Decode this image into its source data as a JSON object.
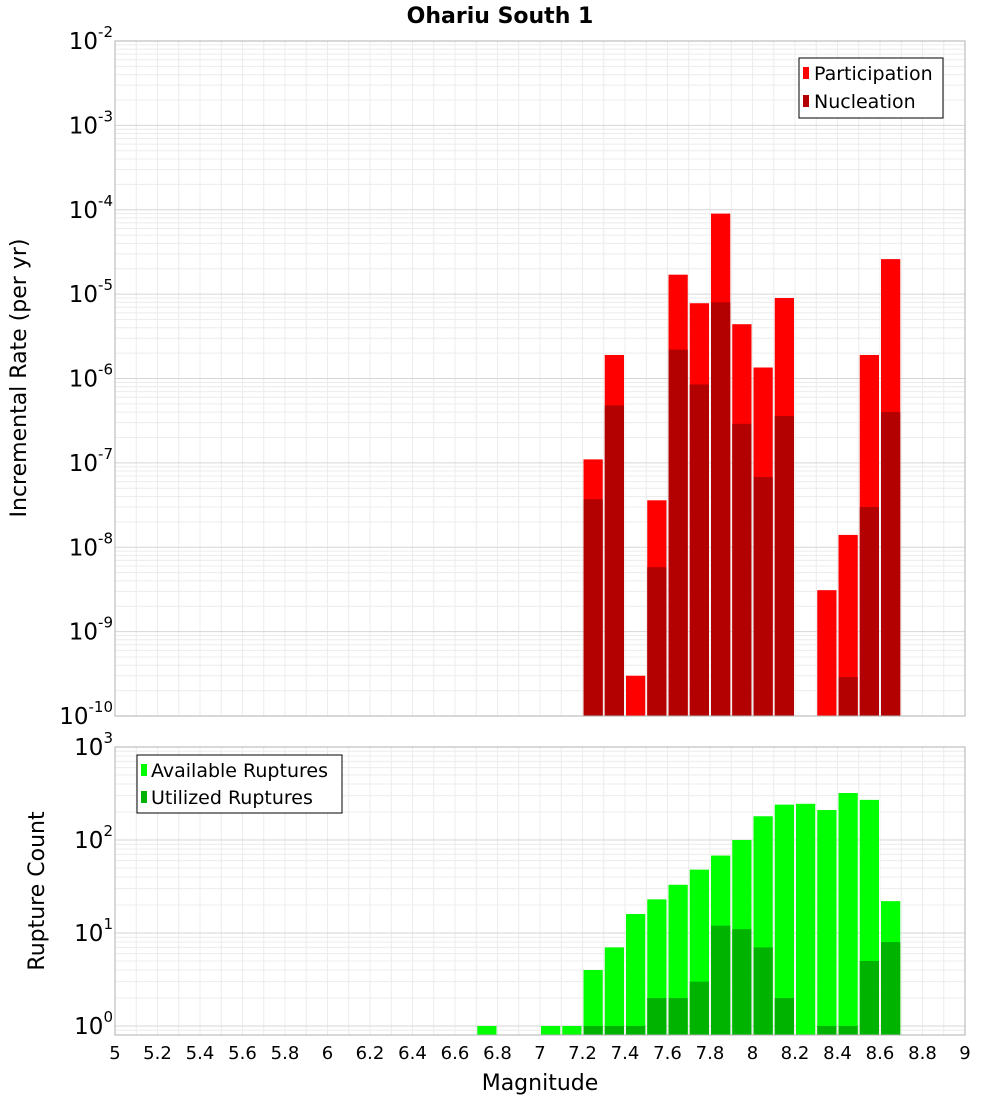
{
  "chart_data": [
    {
      "panel": "top",
      "type": "bar",
      "title": "Ohariu South 1",
      "xlabel": "",
      "ylabel": "Incremental Rate (per yr)",
      "y_scale": "log",
      "ylim": [
        1e-10,
        0.01
      ],
      "xlim": [
        5,
        9
      ],
      "bin_width": 0.1,
      "grid": true,
      "legend_position": "top-right",
      "y_tick_labels": [
        {
          "base": "10",
          "exp": "-10",
          "value": 1e-10
        },
        {
          "base": "10",
          "exp": "-9",
          "value": 1e-09
        },
        {
          "base": "10",
          "exp": "-8",
          "value": 1e-08
        },
        {
          "base": "10",
          "exp": "-7",
          "value": 1e-07
        },
        {
          "base": "10",
          "exp": "-6",
          "value": 1e-06
        },
        {
          "base": "10",
          "exp": "-5",
          "value": 1e-05
        },
        {
          "base": "10",
          "exp": "-4",
          "value": 0.0001
        },
        {
          "base": "10",
          "exp": "-3",
          "value": 0.001
        },
        {
          "base": "10",
          "exp": "-2",
          "value": 0.01
        }
      ],
      "series": [
        {
          "name": "Participation",
          "color": "#ff0000",
          "x": [
            7.25,
            7.35,
            7.45,
            7.55,
            7.65,
            7.75,
            7.85,
            7.95,
            8.05,
            8.15,
            8.35,
            8.45,
            8.55,
            8.65
          ],
          "values": [
            1.1e-07,
            1.9e-06,
            3e-10,
            3.6e-08,
            1.7e-05,
            7.8e-06,
            9e-05,
            4.4e-06,
            1.35e-06,
            9e-06,
            3.1e-09,
            1.4e-08,
            1.9e-06,
            2.6e-05
          ]
        },
        {
          "name": "Nucleation",
          "color": "#b30000",
          "x": [
            7.25,
            7.35,
            7.55,
            7.65,
            7.75,
            7.85,
            7.95,
            8.05,
            8.15,
            8.45,
            8.55,
            8.65
          ],
          "values": [
            3.7e-08,
            4.8e-07,
            5.8e-09,
            2.2e-06,
            8.5e-07,
            8e-06,
            2.9e-07,
            6.8e-08,
            3.6e-07,
            2.9e-10,
            3e-08,
            4e-07
          ]
        }
      ]
    },
    {
      "panel": "bottom",
      "type": "bar",
      "title": "",
      "xlabel": "Magnitude",
      "ylabel": "Rupture Count",
      "y_scale": "log",
      "ylim": [
        0.8,
        1000
      ],
      "xlim": [
        5,
        9
      ],
      "bin_width": 0.1,
      "grid": true,
      "legend_position": "top-left",
      "y_tick_labels": [
        {
          "base": "10",
          "exp": "0",
          "value": 1
        },
        {
          "base": "10",
          "exp": "1",
          "value": 10
        },
        {
          "base": "10",
          "exp": "2",
          "value": 100
        },
        {
          "base": "10",
          "exp": "3",
          "value": 1000
        }
      ],
      "x_tick_labels": [
        "5",
        "5.2",
        "5.4",
        "5.6",
        "5.8",
        "6",
        "6.2",
        "6.4",
        "6.6",
        "6.8",
        "7",
        "7.2",
        "7.4",
        "7.6",
        "7.8",
        "8",
        "8.2",
        "8.4",
        "8.6",
        "8.8",
        "9"
      ],
      "series": [
        {
          "name": "Available Ruptures",
          "color": "#00ff00",
          "x": [
            6.75,
            7.05,
            7.15,
            7.25,
            7.35,
            7.45,
            7.55,
            7.65,
            7.75,
            7.85,
            7.95,
            8.05,
            8.15,
            8.25,
            8.35,
            8.45,
            8.55,
            8.65
          ],
          "values": [
            1,
            1,
            1,
            4,
            7,
            16,
            23,
            33,
            48,
            68,
            100,
            180,
            240,
            245,
            210,
            320,
            270,
            22
          ]
        },
        {
          "name": "Utilized Ruptures",
          "color": "#00b300",
          "x": [
            7.25,
            7.35,
            7.45,
            7.55,
            7.65,
            7.75,
            7.85,
            7.95,
            8.05,
            8.15,
            8.35,
            8.45,
            8.55,
            8.65
          ],
          "values": [
            1,
            1,
            1,
            2,
            2,
            3,
            12,
            11,
            7,
            2,
            1,
            1,
            5,
            8
          ]
        }
      ]
    }
  ]
}
